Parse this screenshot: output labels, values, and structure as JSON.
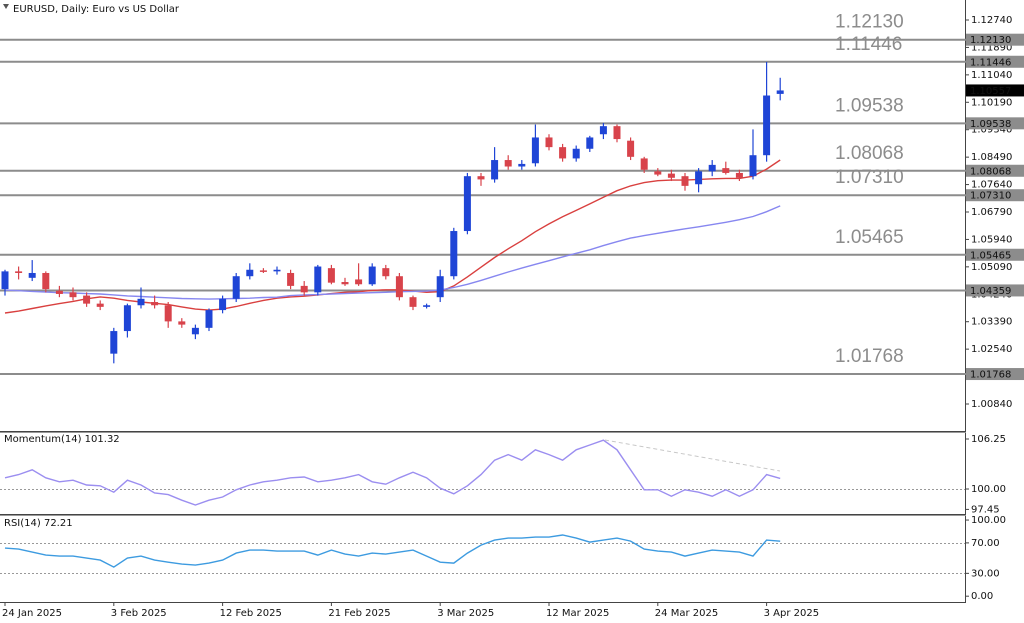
{
  "chart_data": [
    {
      "type": "candlestick",
      "title": "EURUSD, Daily:  Euro vs US Dollar",
      "categories": [
        "24 Jan 2025",
        null,
        null,
        null,
        null,
        null,
        null,
        null,
        "3 Feb 2025",
        null,
        null,
        null,
        null,
        null,
        null,
        null,
        "12 Feb 2025",
        null,
        null,
        null,
        null,
        null,
        null,
        null,
        "21 Feb 2025",
        null,
        null,
        null,
        null,
        null,
        null,
        null,
        "3 Mar 2025",
        null,
        null,
        null,
        null,
        null,
        null,
        null,
        "12 Mar 2025",
        null,
        null,
        null,
        null,
        null,
        null,
        null,
        "24 Mar 2025",
        null,
        null,
        null,
        null,
        null,
        null,
        null,
        "3 Apr 2025",
        null
      ],
      "open": [
        1.044,
        1.0495,
        1.0475,
        1.049,
        1.0435,
        1.043,
        1.042,
        1.0395,
        1.024,
        1.031,
        1.039,
        1.04,
        1.039,
        1.034,
        1.03,
        1.032,
        1.0375,
        1.041,
        1.048,
        1.0498,
        1.0495,
        1.049,
        1.045,
        1.043,
        1.0505,
        1.0462,
        1.047,
        1.0455,
        1.0505,
        1.048,
        1.0415,
        1.0385,
        1.0415,
        1.048,
        1.062,
        1.079,
        1.078,
        1.084,
        1.082,
        1.083,
        1.091,
        1.088,
        1.0845,
        1.0875,
        1.092,
        1.0945,
        1.09,
        1.0845,
        1.0805,
        1.0798,
        1.079,
        1.0765,
        1.0805,
        1.0815,
        1.08,
        1.079,
        1.0855,
        1.1045
      ],
      "high": [
        1.05,
        1.051,
        1.053,
        1.0495,
        1.045,
        1.0445,
        1.043,
        1.0405,
        1.032,
        1.0395,
        1.0445,
        1.042,
        1.04,
        1.035,
        1.033,
        1.038,
        1.042,
        1.049,
        1.052,
        1.0505,
        1.051,
        1.05,
        1.0465,
        1.0515,
        1.0515,
        1.0475,
        1.052,
        1.052,
        1.0515,
        1.049,
        1.042,
        1.0395,
        1.05,
        1.063,
        1.08,
        1.08,
        1.088,
        1.0855,
        1.084,
        1.095,
        1.092,
        1.089,
        1.0885,
        1.0915,
        1.0955,
        1.095,
        1.091,
        1.085,
        1.0815,
        1.081,
        1.08,
        1.0815,
        1.084,
        1.0835,
        1.081,
        1.0935,
        1.1144,
        1.1095
      ],
      "low": [
        1.042,
        1.047,
        1.0465,
        1.043,
        1.0415,
        1.0405,
        1.0385,
        1.0375,
        1.021,
        1.029,
        1.038,
        1.038,
        1.032,
        1.032,
        1.0285,
        1.031,
        1.0365,
        1.04,
        1.047,
        1.049,
        1.0485,
        1.044,
        1.042,
        1.042,
        1.0455,
        1.045,
        1.045,
        1.045,
        1.047,
        1.0405,
        1.0375,
        1.038,
        1.04,
        1.047,
        1.061,
        1.076,
        1.077,
        1.081,
        1.081,
        1.082,
        1.087,
        1.0835,
        1.0835,
        1.0865,
        1.0905,
        1.0895,
        1.084,
        1.08,
        1.079,
        1.0775,
        1.0745,
        1.074,
        1.079,
        1.0795,
        1.0775,
        1.078,
        1.0835,
        1.1025
      ],
      "close": [
        1.0495,
        1.049,
        1.049,
        1.044,
        1.0425,
        1.0415,
        1.0395,
        1.0385,
        1.031,
        1.039,
        1.041,
        1.039,
        1.034,
        1.033,
        1.032,
        1.0375,
        1.041,
        1.048,
        1.05,
        1.0495,
        1.05,
        1.045,
        1.043,
        1.051,
        1.046,
        1.0455,
        1.0455,
        1.051,
        1.048,
        1.0415,
        1.0385,
        1.039,
        1.048,
        1.062,
        1.079,
        1.078,
        1.084,
        1.082,
        1.0828,
        1.091,
        1.088,
        1.0845,
        1.0875,
        1.091,
        1.0945,
        1.0905,
        1.085,
        1.081,
        1.0795,
        1.0785,
        1.076,
        1.0805,
        1.0825,
        1.08,
        1.0785,
        1.0855,
        1.104,
        1.10557
      ],
      "up_color": "#1f45d6",
      "down_color": "#d8434b",
      "series": [
        {
          "color": "#d9403f",
          "values": [
            1.0366,
            1.0372,
            1.038,
            1.0388,
            1.0395,
            1.0402,
            1.041,
            1.0416,
            1.0412,
            1.0405,
            1.04,
            1.0396,
            1.0392,
            1.0385,
            1.0378,
            1.0375,
            1.0378,
            1.0386,
            1.0396,
            1.0405,
            1.0412,
            1.0416,
            1.0418,
            1.0422,
            1.0426,
            1.043,
            1.0432,
            1.0436,
            1.0438,
            1.0438,
            1.0434,
            1.043,
            1.0432,
            1.045,
            1.0478,
            1.0508,
            1.0538,
            1.0565,
            1.059,
            1.0618,
            1.0642,
            1.0664,
            1.0684,
            1.0704,
            1.0725,
            1.0745,
            1.076,
            1.077,
            1.0776,
            1.0778,
            1.0778,
            1.078,
            1.0782,
            1.0783,
            1.0783,
            1.079,
            1.0812,
            1.084
          ]
        },
        {
          "color": "#8787f0",
          "values": [
            1.0437,
            1.0435,
            1.0433,
            1.0431,
            1.0429,
            1.0428,
            1.0426,
            1.0425,
            1.0422,
            1.0419,
            1.0417,
            1.0415,
            1.0413,
            1.0411,
            1.041,
            1.0409,
            1.041,
            1.0411,
            1.0412,
            1.0414,
            1.0415,
            1.042,
            1.0422,
            1.0423,
            1.0425,
            1.0426,
            1.0428,
            1.0429,
            1.043,
            1.0432,
            1.0433,
            1.0434,
            1.0437,
            1.0445,
            1.0455,
            1.0467,
            1.048,
            1.0493,
            1.0505,
            1.0517,
            1.0528,
            1.054,
            1.0551,
            1.0562,
            1.0575,
            1.0587,
            1.0598,
            1.0606,
            1.0613,
            1.062,
            1.0627,
            1.0633,
            1.064,
            1.0647,
            1.0655,
            1.0665,
            1.068,
            1.0698
          ]
        }
      ],
      "ylim": [
        1.00034,
        1.13267
      ],
      "yticks": [
        {
          "value": 1.1274,
          "label": "1.12740"
        },
        {
          "value": 1.1189,
          "label": "1.11890"
        },
        {
          "value": 1.1104,
          "label": "1.11040"
        },
        {
          "value": 1.1019,
          "label": "1.10190"
        },
        {
          "value": 1.0934,
          "label": "1.09340"
        },
        {
          "value": 1.0849,
          "label": "1.08490"
        },
        {
          "value": 1.0764,
          "label": "1.07640"
        },
        {
          "value": 1.0679,
          "label": "1.06790"
        },
        {
          "value": 1.0594,
          "label": "1.05940"
        },
        {
          "value": 1.0509,
          "label": "1.05090"
        },
        {
          "value": 1.0424,
          "label": "1.04240"
        },
        {
          "value": 1.0339,
          "label": "1.03390"
        },
        {
          "value": 1.0254,
          "label": "1.02540"
        },
        {
          "value": 1.0169,
          "label": "1.01690"
        },
        {
          "value": 1.0084,
          "label": "1.00840"
        }
      ],
      "levels": [
        {
          "value": 1.1213,
          "label": "1.12130"
        },
        {
          "value": 1.11446,
          "label": "1.11446"
        },
        {
          "value": 1.09538,
          "label": "1.09538"
        },
        {
          "value": 1.08068,
          "label": "1.08068"
        },
        {
          "value": 1.0731,
          "label": "1.07310"
        },
        {
          "value": 1.05465,
          "label": "1.05465"
        },
        {
          "value": 1.04359,
          "label": "1.04359",
          "big_label": false
        },
        {
          "value": 1.01768,
          "label": "1.01768"
        }
      ],
      "level_color": "#8c8c8c",
      "last_price": 1.10557
    },
    {
      "type": "line",
      "title": "Momentum(14) 101.32",
      "series": [
        {
          "color": "#9b8ef0",
          "values": [
            101.4,
            101.8,
            102.4,
            101.4,
            100.9,
            101.1,
            100.5,
            100.4,
            99.6,
            101.1,
            100.5,
            99.5,
            99.3,
            98.6,
            98.0,
            98.6,
            99.0,
            99.9,
            100.5,
            100.9,
            101.1,
            101.4,
            101.5,
            100.9,
            101.1,
            101.4,
            101.8,
            100.9,
            100.6,
            101.4,
            102.1,
            101.4,
            100.1,
            99.4,
            100.4,
            101.8,
            103.6,
            104.3,
            103.6,
            104.9,
            104.3,
            103.6,
            104.9,
            105.5,
            106.1,
            104.9,
            102.4,
            99.9,
            99.9,
            99.1,
            99.9,
            99.6,
            99.1,
            99.9,
            99.1,
            99.9,
            101.8,
            101.32
          ]
        }
      ],
      "ylim": [
        97,
        107
      ],
      "yticks": [
        106.25,
        {
          "value": 100,
          "label": "100.00"
        },
        97.45
      ],
      "levels": [
        100
      ]
    },
    {
      "type": "line",
      "title": "RSI(14) 72.21",
      "series": [
        {
          "color": "#3d9be0",
          "values": [
            63.2,
            61.8,
            57.9,
            53.9,
            52.6,
            52.6,
            50.0,
            47.4,
            38.2,
            50.0,
            52.6,
            47.4,
            44.7,
            42.1,
            40.8,
            43.4,
            47.4,
            56.6,
            60.5,
            60.5,
            59.2,
            59.2,
            59.2,
            53.9,
            60.5,
            55.3,
            52.6,
            56.6,
            55.3,
            57.9,
            60.5,
            52.6,
            44.7,
            43.4,
            56.6,
            67.1,
            73.7,
            76.3,
            76.3,
            77.6,
            77.6,
            80.3,
            76.3,
            71.1,
            73.7,
            76.3,
            72.4,
            61.8,
            59.2,
            57.9,
            52.6,
            56.6,
            60.5,
            59.2,
            57.9,
            52.6,
            73.7,
            72.21
          ]
        }
      ],
      "ylim": [
        -5,
        104
      ],
      "yticks": [
        {
          "value": 100,
          "label": "100.00"
        },
        {
          "value": 70,
          "label": "70.00"
        },
        {
          "value": 30,
          "label": "30.00"
        },
        {
          "value": 0,
          "label": "0.00"
        }
      ],
      "levels": [
        70,
        30
      ]
    }
  ]
}
